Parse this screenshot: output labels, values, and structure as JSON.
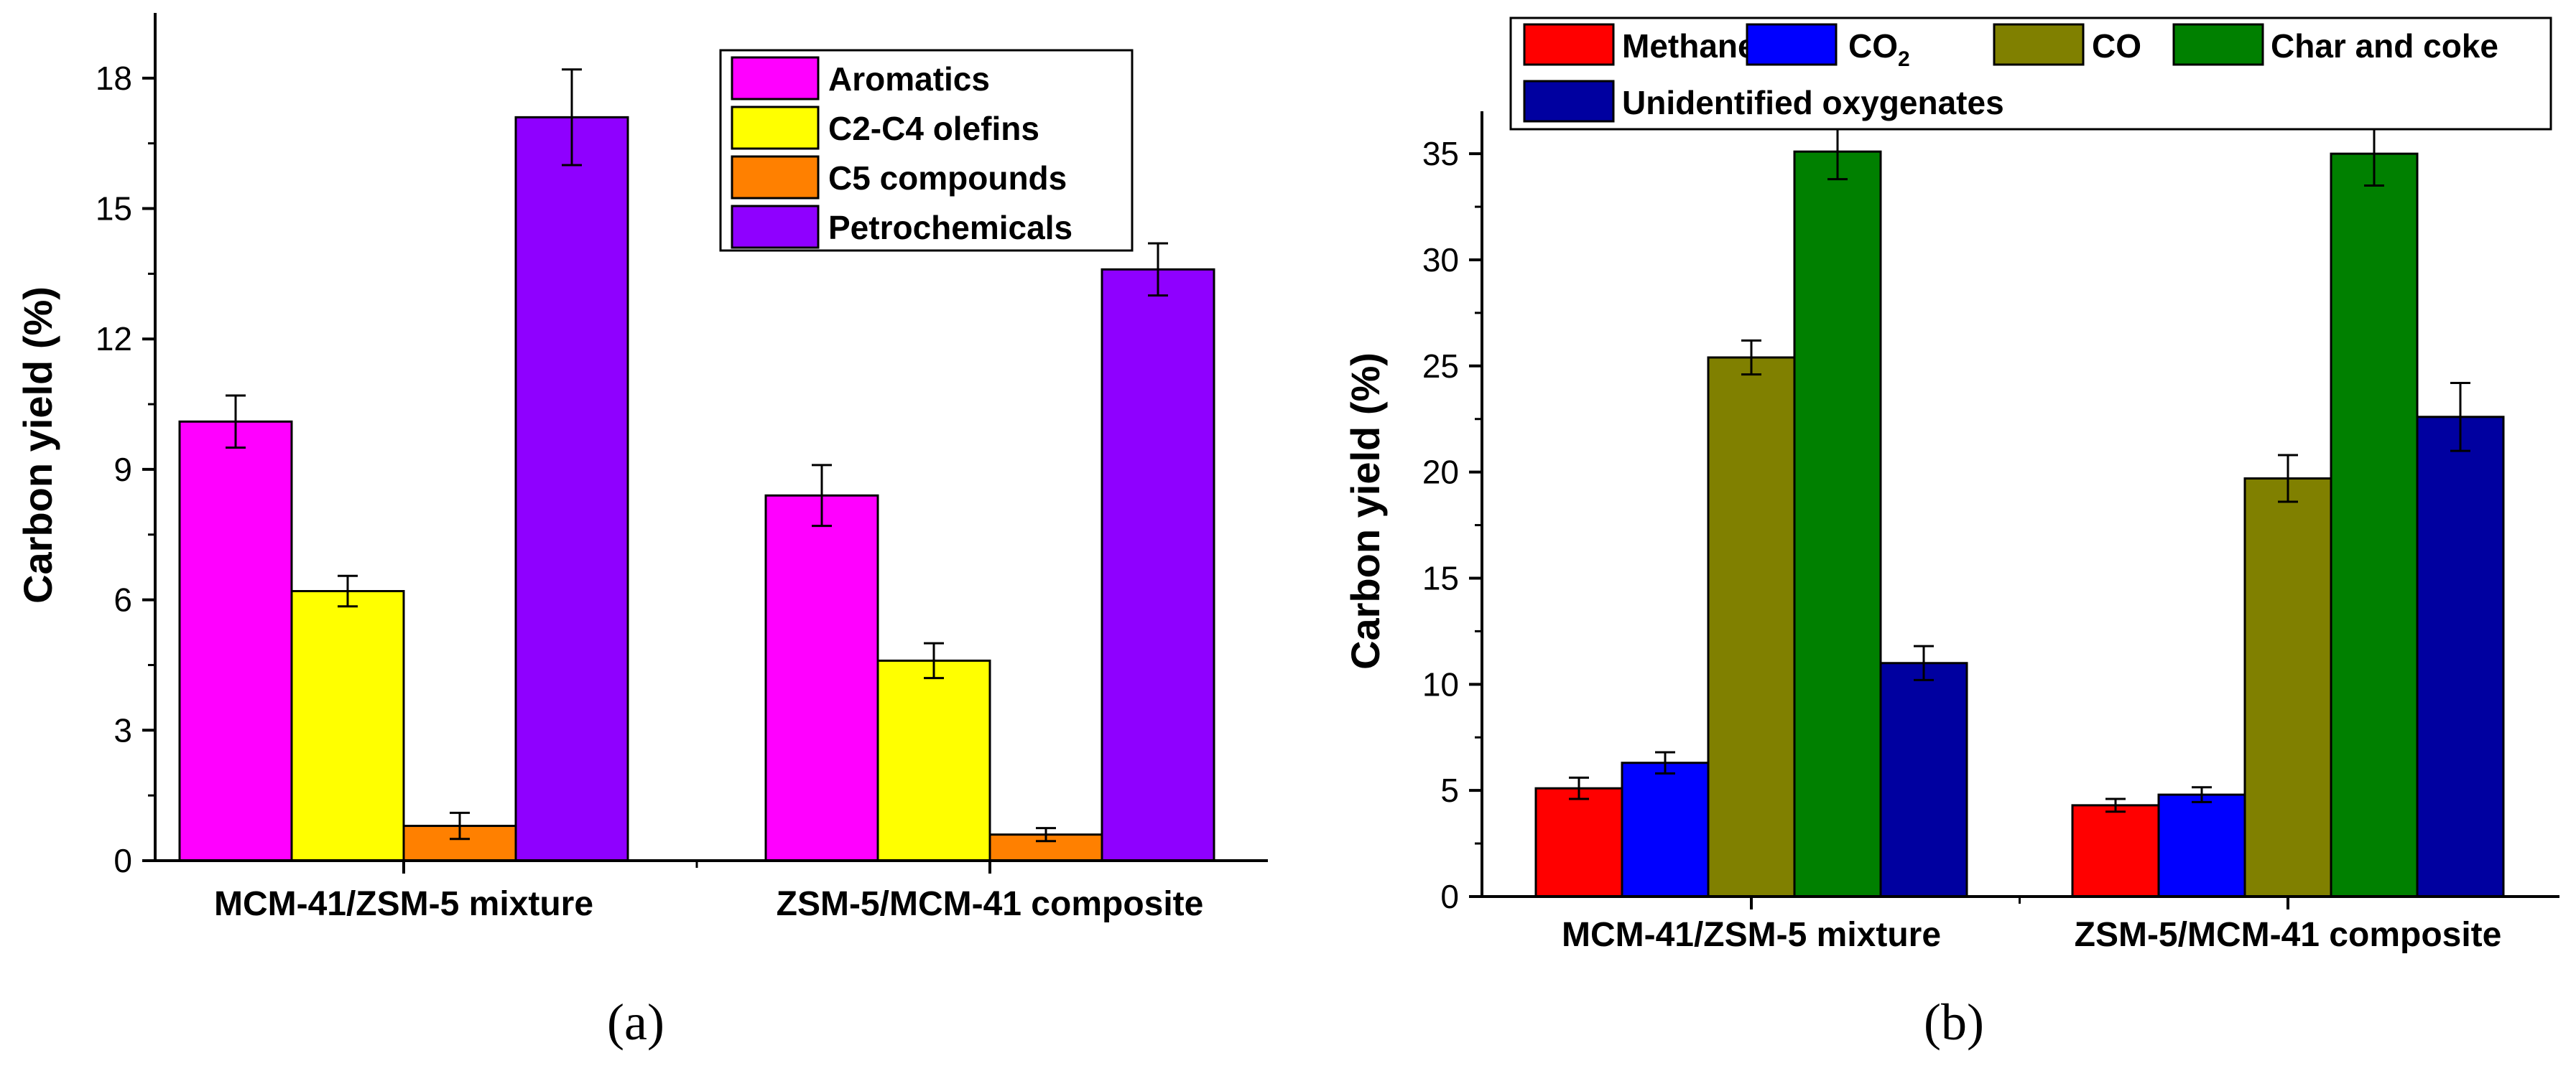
{
  "chart_data": [
    {
      "type": "bar",
      "panel_label": "(a)",
      "ylabel": "Carbon yield (%)",
      "xlabel": "",
      "ylim": [
        0,
        19.5
      ],
      "yticks": [
        0,
        3,
        6,
        9,
        12,
        15,
        18
      ],
      "y_minor_step": 1.5,
      "categories": [
        "MCM-41/ZSM-5 mixture",
        "ZSM-5/MCM-41 composite"
      ],
      "legend_position": "top-right",
      "series": [
        {
          "name": "Aromatics",
          "color": "#ff00ff",
          "values": [
            10.1,
            8.4
          ],
          "errors": [
            0.6,
            0.7
          ]
        },
        {
          "name": "C2-C4 olefins",
          "color": "#ffff00",
          "values": [
            6.2,
            4.6
          ],
          "errors": [
            0.35,
            0.4
          ]
        },
        {
          "name": "C5 compounds",
          "color": "#ff8000",
          "values": [
            0.8,
            0.6
          ],
          "errors": [
            0.3,
            0.15
          ]
        },
        {
          "name": "Petrochemicals",
          "color": "#8f00ff",
          "values": [
            17.1,
            13.6
          ],
          "errors": [
            1.1,
            0.6
          ]
        }
      ]
    },
    {
      "type": "bar",
      "panel_label": "(b)",
      "ylabel": "Carbon yield (%)",
      "xlabel": "",
      "ylim": [
        0,
        37
      ],
      "yticks": [
        0,
        5,
        10,
        15,
        20,
        25,
        30,
        35
      ],
      "y_minor_step": 2.5,
      "categories": [
        "MCM-41/ZSM-5 mixture",
        "ZSM-5/MCM-41 composite"
      ],
      "legend_position": "top",
      "series": [
        {
          "name": "Methane",
          "color": "#ff0000",
          "values": [
            5.1,
            4.3
          ],
          "errors": [
            0.5,
            0.3
          ]
        },
        {
          "name": "CO",
          "name_sub": "2",
          "color": "#0000ff",
          "values": [
            6.3,
            4.8
          ],
          "errors": [
            0.5,
            0.35
          ]
        },
        {
          "name": "CO",
          "color": "#808000",
          "values": [
            25.4,
            19.7
          ],
          "errors": [
            0.8,
            1.1
          ]
        },
        {
          "name": "Char and coke",
          "color": "#008000",
          "values": [
            35.1,
            35.0
          ],
          "errors": [
            1.3,
            1.5
          ]
        },
        {
          "name": "Unidentified oxygenates",
          "color": "#0000a0",
          "values": [
            11.0,
            22.6
          ],
          "errors": [
            0.8,
            1.6
          ]
        }
      ]
    }
  ]
}
